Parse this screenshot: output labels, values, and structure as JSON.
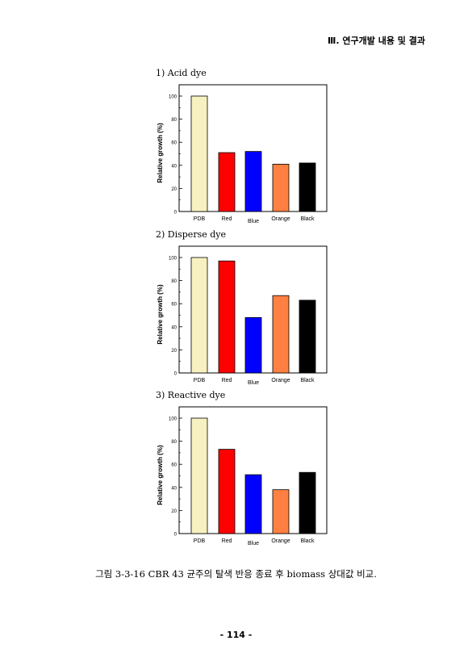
{
  "header": {
    "title": "Ⅲ. 연구개발 내용 및 결과"
  },
  "caption": "그림 3-3-16 CBR 43 균주의 탈색 반응 종료 후 biomass 상대값 비교.",
  "page_number": "- 114 -",
  "colors": {
    "PDB": "#f7f0c0",
    "Red": "#ff0000",
    "Blue": "#0000ff",
    "Orange": "#ff8040",
    "Black": "#000000"
  },
  "chart_data": [
    {
      "type": "bar",
      "panel_title": "1) Acid dye",
      "categories": [
        "PDB",
        "Red",
        "Blue",
        "Orange",
        "Black"
      ],
      "values": [
        100,
        51,
        52,
        41,
        42
      ],
      "ylabel": "Relative growth (%)",
      "ylim": [
        0,
        100
      ],
      "yticks": [
        "0",
        "20",
        "40",
        "60",
        "80",
        "100"
      ],
      "grid": false
    },
    {
      "type": "bar",
      "panel_title": "2) Disperse dye",
      "categories": [
        "PDB",
        "Red",
        "Blue",
        "Orange",
        "Black"
      ],
      "values": [
        100,
        97,
        48,
        67,
        63
      ],
      "ylabel": "Relative growth (%)",
      "ylim": [
        0,
        100
      ],
      "yticks": [
        "0",
        "20",
        "40",
        "60",
        "80",
        "100"
      ],
      "grid": false
    },
    {
      "type": "bar",
      "panel_title": "3) Reactive dye",
      "categories": [
        "PDB",
        "Red",
        "Blue",
        "Orange",
        "Black"
      ],
      "values": [
        100,
        73,
        51,
        38,
        53
      ],
      "ylabel": "Relative growth (%)",
      "ylim": [
        0,
        100
      ],
      "yticks": [
        "0",
        "20",
        "40",
        "60",
        "80",
        "100"
      ],
      "grid": false
    }
  ]
}
